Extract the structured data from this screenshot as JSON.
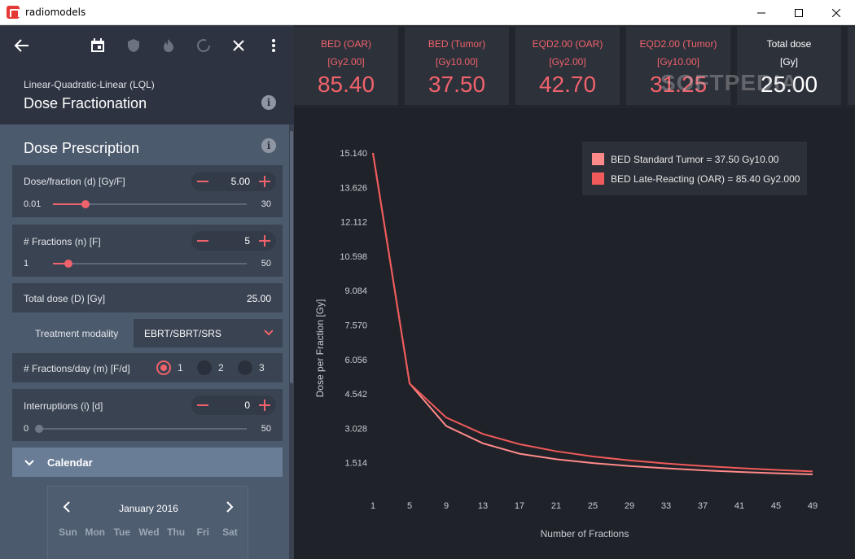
{
  "window": {
    "title": "radiomodels"
  },
  "toolbar": {
    "icons": [
      "back-arrow-icon",
      "calendar-icon",
      "shield-icon",
      "flame-icon",
      "refresh-icon",
      "close-icon",
      "more-vert-icon"
    ]
  },
  "model": {
    "subtitle": "Linear-Quadratic-Linear (LQL)",
    "title": "Dose Fractionation"
  },
  "prescription": {
    "title": "Dose Prescription",
    "dose_per_fraction": {
      "label": "Dose/fraction (d) [Gy/F]",
      "value": "5.00",
      "min": "0.01",
      "max": "30",
      "slider_fraction": 0.17
    },
    "fractions": {
      "label": "# Fractions (n) [F]",
      "value": "5",
      "min": "1",
      "max": "50",
      "slider_fraction": 0.08
    },
    "total_dose": {
      "label": "Total dose (D) [Gy]",
      "value": "25.00"
    },
    "modality": {
      "label": "Treatment modality",
      "value": "EBRT/SBRT/SRS"
    },
    "fractions_per_day": {
      "label": "# Fractions/day (m) [F/d]",
      "options": [
        "1",
        "2",
        "3"
      ],
      "selected": "1"
    },
    "interruptions": {
      "label": "Interruptions (i) [d]",
      "value": "0",
      "min": "0",
      "max": "50",
      "slider_fraction": 0.0
    }
  },
  "calendar": {
    "title": "Calendar",
    "month": "January 2016",
    "days": [
      "Sun",
      "Mon",
      "Tue",
      "Wed",
      "Thu",
      "Fri",
      "Sat"
    ]
  },
  "metrics": [
    {
      "name": "BED (OAR)",
      "unit": "[Gy2.00]",
      "value": "85.40"
    },
    {
      "name": "BED (Tumor)",
      "unit": "[Gy10.00]",
      "value": "37.50"
    },
    {
      "name": "EQD2.00 (OAR)",
      "unit": "[Gy2.00]",
      "value": "42.70"
    },
    {
      "name": "EQD2.00 (Tumor)",
      "unit": "[Gy10.00]",
      "value": "31.25"
    },
    {
      "name": "Total dose",
      "unit": "[Gy]",
      "value": "25.00"
    }
  ],
  "watermark": "SOFTPEDIA",
  "colors": {
    "accent": "#f0626c",
    "series_tumor": "#ff8a8a",
    "series_oar": "#f05a5a"
  },
  "chart_data": {
    "type": "line",
    "xlabel": "Number of Fractions",
    "ylabel": "Dose per Fraction [Gy]",
    "xticks": [
      1,
      5,
      9,
      13,
      17,
      21,
      25,
      29,
      33,
      37,
      41,
      45,
      49
    ],
    "yticks": [
      1.514,
      3.028,
      4.542,
      6.056,
      7.57,
      9.084,
      10.598,
      12.112,
      13.626,
      15.14
    ],
    "ytick_labels": [
      "1.514",
      "3.028",
      "4.542",
      "6.056",
      "7.570",
      "9.084",
      "10.598",
      "12.112",
      "13.626",
      "15.140"
    ],
    "xlim": [
      1,
      49
    ],
    "ylim": [
      0,
      15.14
    ],
    "legend_position": "top-right",
    "series": [
      {
        "name": "BED Standard Tumor = 37.50 Gy10.00",
        "color": "#ff8a8a",
        "x": [
          1,
          5,
          9,
          13,
          17,
          21,
          25,
          29,
          33,
          37,
          41,
          45,
          49
        ],
        "y": [
          15.14,
          5.0,
          3.13,
          2.37,
          1.91,
          1.67,
          1.5,
          1.37,
          1.27,
          1.18,
          1.11,
          1.05,
          1.0
        ]
      },
      {
        "name": "BED Late-Reacting (OAR) = 85.40 Gy2.000",
        "color": "#f05a5a",
        "x": [
          1,
          5,
          9,
          13,
          17,
          21,
          25,
          29,
          33,
          37,
          41,
          45,
          49
        ],
        "y": [
          15.14,
          5.0,
          3.5,
          2.78,
          2.33,
          2.02,
          1.79,
          1.62,
          1.48,
          1.37,
          1.28,
          1.2,
          1.13
        ]
      }
    ]
  }
}
